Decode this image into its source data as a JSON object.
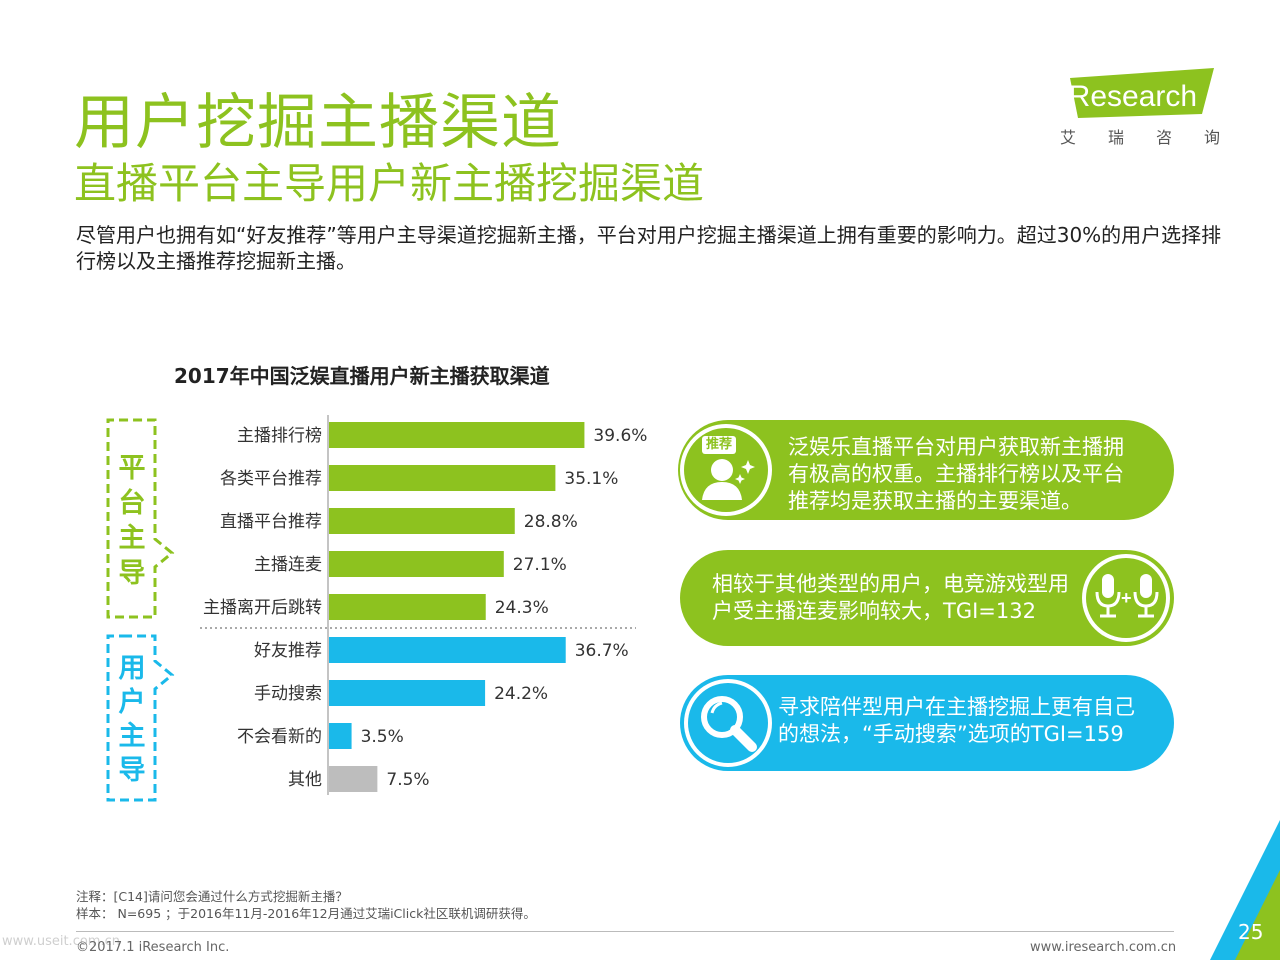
{
  "header": {
    "title": "用户挖掘主播渠道",
    "subtitle": "直播平台主导用户新主播挖掘渠道",
    "intro": "尽管用户也拥有如“好友推荐”等用户主导渠道挖掘新主播，平台对用户挖掘主播渠道上拥有重要的影响力。超过30%的用户选择排行榜以及主播推荐挖掘新主播。"
  },
  "logo": {
    "brand": "iResearch",
    "cn_chars": [
      "艾",
      "瑞",
      "咨",
      "询"
    ]
  },
  "chart_data": {
    "type": "bar",
    "orientation": "horizontal",
    "title": "2017年中国泛娱直播用户新主播获取渠道",
    "unit": "%",
    "categories": [
      "主播排行榜",
      "各类平台推荐",
      "直播平台推荐",
      "主播连麦",
      "主播离开后跳转",
      "好友推荐",
      "手动搜索",
      "不会看新的",
      "其他"
    ],
    "values": [
      39.6,
      35.1,
      28.8,
      27.1,
      24.3,
      36.7,
      24.2,
      3.5,
      7.5
    ],
    "value_labels": [
      "39.6%",
      "35.1%",
      "28.8%",
      "27.1%",
      "24.3%",
      "36.7%",
      "24.2%",
      "3.5%",
      "7.5%"
    ],
    "groups": [
      {
        "label_chars": [
          "平",
          "台",
          "主",
          "导"
        ],
        "indices": [
          0,
          1,
          2,
          3,
          4
        ],
        "color": "#8dc21f"
      },
      {
        "label_chars": [
          "用",
          "户",
          "主",
          "导"
        ],
        "indices": [
          5,
          6,
          7
        ],
        "color": "#1ab9ea"
      }
    ],
    "other_color": "#bdbdbd",
    "xlim": [
      0,
      45
    ],
    "grid": false
  },
  "callouts": [
    {
      "text": "泛娱乐直播平台对用户获取新主播拥有极高的权重。主播排行榜以及平台推荐均是获取主播的主要渠道。",
      "icon_label": "推荐",
      "icon": "user-recommend-icon",
      "color": "#8dc21f"
    },
    {
      "text": "相较于其他类型的用户，电竞游戏型用户受主播连麦影响较大，TGI=132",
      "icon": "microphone-pair-icon",
      "color": "#8dc21f"
    },
    {
      "text": "寻求陪伴型用户在主播挖掘上更有自己的想法，“手动搜索”选项的TGI=159",
      "icon": "magnifier-icon",
      "color": "#1ab9ea"
    }
  ],
  "notes": {
    "note": "注释：[C14]请问您会通过什么方式挖掘新主播？",
    "sample": "样本： N=695 ；于2016年11月-2016年12月通过艾瑞iClick社区联机调研获得。"
  },
  "footer": {
    "copyright": "©2017.1 iResearch Inc.",
    "website": "www.iresearch.com.cn",
    "page": "25",
    "watermark": "www.useit.com.cn"
  },
  "colors": {
    "green": "#8dc21f",
    "blue": "#1ab9ea",
    "gray": "#bdbdbd"
  }
}
